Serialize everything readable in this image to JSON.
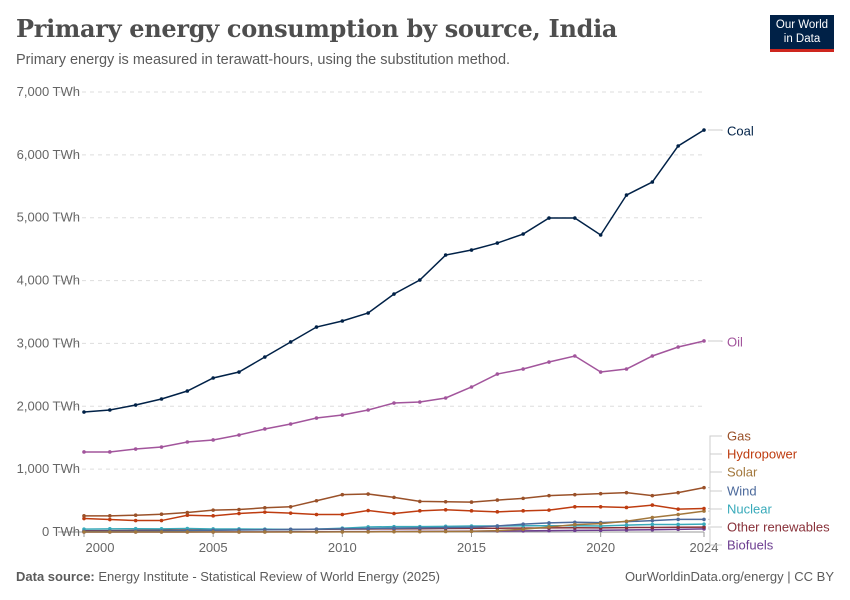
{
  "header": {
    "title": "Primary energy consumption by source, India",
    "subtitle": "Primary energy is measured in terawatt-hours, using the substitution method.",
    "logo": "Our World in Data"
  },
  "footer": {
    "source_label": "Data source:",
    "source": "Energy Institute - Statistical Review of World Energy (2025)",
    "right": "OurWorldinData.org/energy | CC BY"
  },
  "chart_data": {
    "type": "line",
    "title": "Primary energy consumption by source, India",
    "xlabel": "",
    "ylabel": "",
    "xlim": [
      2000,
      2024
    ],
    "ylim": [
      0,
      7000
    ],
    "grid": true,
    "legend": "right (line-end labels)",
    "x_ticks": [
      "2000",
      "2005",
      "2010",
      "2015",
      "2020",
      "2024"
    ],
    "y_ticks": [
      "0 TWh",
      "1,000 TWh",
      "2,000 TWh",
      "3,000 TWh",
      "4,000 TWh",
      "5,000 TWh",
      "6,000 TWh",
      "7,000 TWh"
    ],
    "x": [
      2000,
      2001,
      2002,
      2003,
      2004,
      2005,
      2006,
      2007,
      2008,
      2009,
      2010,
      2011,
      2012,
      2013,
      2014,
      2015,
      2016,
      2017,
      2018,
      2019,
      2020,
      2021,
      2022,
      2023,
      2024
    ],
    "series": [
      {
        "name": "Coal",
        "color": "#002147",
        "values": [
          1909,
          1941,
          2020,
          2116,
          2243,
          2450,
          2545,
          2784,
          3023,
          3261,
          3357,
          3484,
          3786,
          4009,
          4406,
          4486,
          4597,
          4740,
          4995,
          4995,
          4725,
          5361,
          5568,
          6141,
          6395
        ]
      },
      {
        "name": "Oil",
        "color": "#a2559c",
        "values": [
          1273,
          1273,
          1320,
          1352,
          1432,
          1464,
          1543,
          1639,
          1718,
          1813,
          1861,
          1941,
          2052,
          2068,
          2132,
          2307,
          2513,
          2593,
          2704,
          2800,
          2545,
          2593,
          2800,
          2943,
          3039
        ]
      },
      {
        "name": "Gas",
        "color": "#9a5129",
        "values": [
          257,
          257,
          267,
          283,
          310,
          348,
          358,
          385,
          401,
          497,
          594,
          604,
          551,
          487,
          481,
          476,
          508,
          535,
          578,
          594,
          610,
          626,
          578,
          626,
          706
        ]
      },
      {
        "name": "Hydropower",
        "color": "#be3c10",
        "values": [
          214,
          198,
          182,
          182,
          267,
          257,
          294,
          316,
          300,
          278,
          278,
          342,
          294,
          337,
          353,
          337,
          321,
          337,
          348,
          401,
          401,
          390,
          428,
          364,
          374
        ]
      },
      {
        "name": "Solar",
        "color": "#a2773c",
        "values": [
          0,
          0,
          0,
          0,
          0,
          0,
          0,
          0,
          0,
          0,
          1,
          2,
          4,
          6,
          8,
          10,
          21,
          43,
          80,
          118,
          134,
          171,
          230,
          278,
          332
        ]
      },
      {
        "name": "Wind",
        "color": "#4c6a9c",
        "values": [
          10,
          12,
          14,
          16,
          20,
          28,
          32,
          36,
          40,
          45,
          50,
          55,
          60,
          65,
          70,
          75,
          95,
          125,
          145,
          155,
          150,
          165,
          180,
          200,
          200
        ]
      },
      {
        "name": "Nuclear",
        "color": "#38aaba",
        "values": [
          45,
          50,
          52,
          50,
          55,
          48,
          48,
          45,
          40,
          45,
          60,
          80,
          85,
          85,
          90,
          95,
          95,
          100,
          100,
          100,
          95,
          110,
          120,
          120,
          125
        ]
      },
      {
        "name": "Other renewables",
        "color": "#883039",
        "values": [
          20,
          22,
          25,
          28,
          30,
          32,
          35,
          38,
          40,
          42,
          45,
          48,
          50,
          52,
          55,
          58,
          60,
          62,
          65,
          68,
          65,
          70,
          72,
          75,
          78
        ]
      },
      {
        "name": "Biofuels",
        "color": "#6d3e91",
        "values": [
          0,
          0,
          0,
          0,
          0,
          1,
          1,
          2,
          3,
          4,
          5,
          6,
          8,
          10,
          12,
          14,
          16,
          18,
          22,
          26,
          28,
          32,
          36,
          42,
          50
        ]
      }
    ]
  }
}
